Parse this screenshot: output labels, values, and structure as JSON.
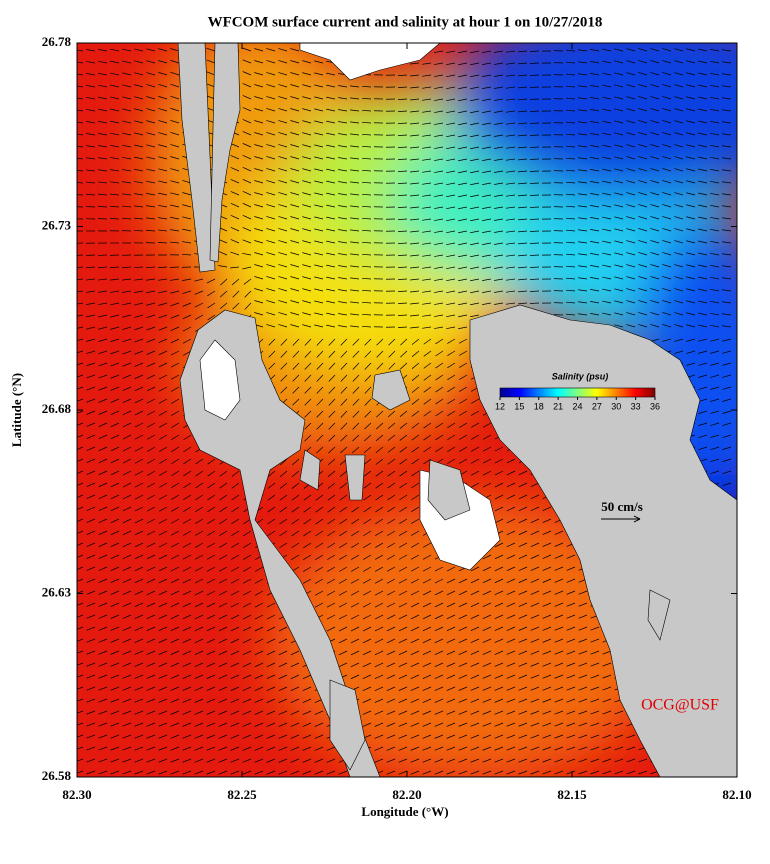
{
  "title": "WFCOM surface current and salinity at hour 1 on 10/27/2018",
  "x_axis": {
    "label": "Longitude (°W)",
    "lim": [
      82.3,
      82.1
    ],
    "ticks": [
      {
        "value": 82.3,
        "label": "82.30"
      },
      {
        "value": 82.25,
        "label": "82.25"
      },
      {
        "value": 82.2,
        "label": "82.20"
      },
      {
        "value": 82.15,
        "label": "82.15"
      },
      {
        "value": 82.1,
        "label": "82.10"
      }
    ]
  },
  "y_axis": {
    "label": "Latitude (°N)",
    "lim": [
      26.58,
      26.78
    ],
    "ticks": [
      {
        "value": 26.58,
        "label": "26.58"
      },
      {
        "value": 26.63,
        "label": "26.63"
      },
      {
        "value": 26.68,
        "label": "26.68"
      },
      {
        "value": 26.73,
        "label": "26.73"
      },
      {
        "value": 26.78,
        "label": "26.78"
      }
    ]
  },
  "colorbar": {
    "title": "Salinity (psu)",
    "lim": [
      12,
      36
    ],
    "ticks": [
      12,
      15,
      18,
      21,
      24,
      27,
      30,
      33,
      36
    ],
    "colors": [
      "#00008f",
      "#0000ff",
      "#0080ff",
      "#00ffff",
      "#80ff80",
      "#ffff00",
      "#ff8000",
      "#ff0000",
      "#800000"
    ]
  },
  "scale_label": "50 cm/s",
  "credit": "OCG@USF"
}
